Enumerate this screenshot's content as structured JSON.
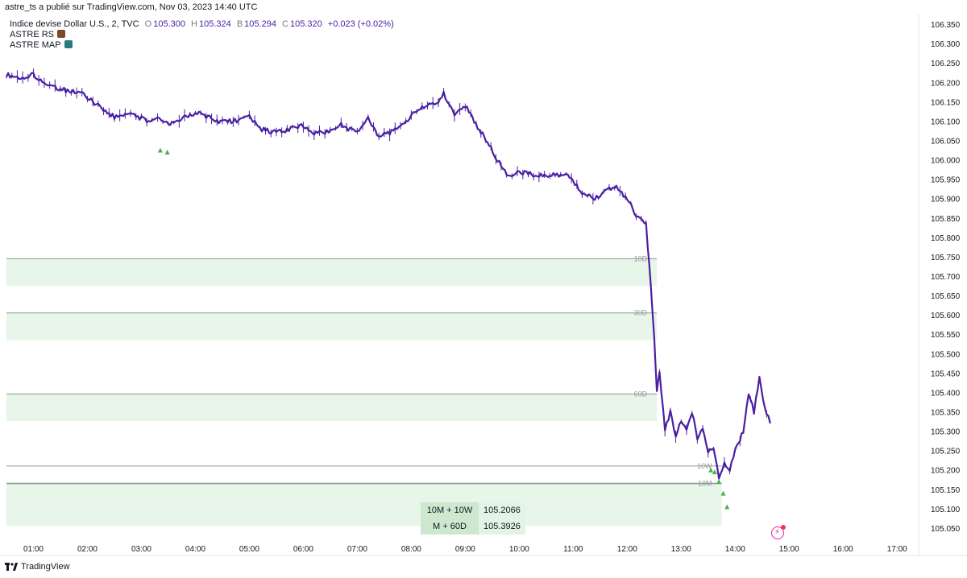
{
  "header": {
    "publisher_line": "astre_ts a publié sur TradingView.com, Nov 03, 2023 14:40 UTC"
  },
  "legend": {
    "symbol": "Indice devise Dollar U.S., 2, TVC",
    "open_label": "O",
    "open": "105.300",
    "high_label": "H",
    "high": "105.324",
    "low_label": "B",
    "low": "105.294",
    "close_label": "C",
    "close": "105.320",
    "change": "+0.023 (+0.02%)",
    "indicators": [
      {
        "name": "ASTRE RS",
        "badge_color": "#7b4a2a"
      },
      {
        "name": "ASTRE MAP",
        "badge_color": "#2a7b7b"
      }
    ]
  },
  "info_table": {
    "rows": [
      {
        "key": "10M + 10W",
        "value": "105.2066"
      },
      {
        "key": "M + 60D",
        "value": "105.3926"
      }
    ]
  },
  "footer": {
    "brand": "TradingView"
  },
  "colors": {
    "candle": "#4a1fa3",
    "zone_fill": "#e8f5e9",
    "zone_line": "#8a9a8c",
    "arrow": "#4caf50",
    "grid_text": "#131722"
  },
  "chart_data": {
    "type": "line",
    "ylim": [
      105.025,
      106.375
    ],
    "y_ticks": [
      "106.350",
      "106.300",
      "106.250",
      "106.200",
      "106.150",
      "106.100",
      "106.050",
      "106.000",
      "105.950",
      "105.900",
      "105.850",
      "105.800",
      "105.750",
      "105.700",
      "105.650",
      "105.600",
      "105.550",
      "105.500",
      "105.450",
      "105.400",
      "105.350",
      "105.300",
      "105.250",
      "105.200",
      "105.150",
      "105.100",
      "105.050"
    ],
    "x_ticks": [
      "01:00",
      "02:00",
      "03:00",
      "04:00",
      "05:00",
      "06:00",
      "07:00",
      "08:00",
      "09:00",
      "10:00",
      "11:00",
      "12:00",
      "13:00",
      "14:00",
      "15:00",
      "16:00",
      "17:00"
    ],
    "x_range_hours": [
      0.5,
      17.4
    ],
    "series": [
      {
        "x": [
          0.5,
          0.8,
          1.0,
          1.3,
          1.6,
          1.9,
          2.2,
          2.5,
          2.8,
          3.1,
          3.3,
          3.5,
          3.8,
          4.1,
          4.4,
          4.7,
          5.0,
          5.2,
          5.5,
          5.8,
          6.0,
          6.2,
          6.4,
          6.7,
          7.0,
          7.2,
          7.4,
          7.6,
          7.9,
          8.1,
          8.3,
          8.5,
          8.6,
          8.8,
          9.0,
          9.2,
          9.35,
          9.6,
          9.8,
          10.0,
          10.3,
          10.6,
          10.9,
          11.2,
          11.4,
          11.6,
          11.8,
          12.0,
          12.2,
          12.35,
          12.5,
          12.55,
          12.6,
          12.7,
          12.8,
          12.9,
          13.0,
          13.1,
          13.2,
          13.3,
          13.4,
          13.5,
          13.6,
          13.7,
          13.8,
          13.9,
          14.0,
          14.15,
          14.25,
          14.35,
          14.45,
          14.55,
          14.65
        ],
        "values": [
          106.22,
          106.21,
          106.22,
          106.19,
          106.18,
          106.17,
          106.14,
          106.11,
          106.12,
          106.1,
          106.11,
          106.09,
          106.11,
          106.12,
          106.1,
          106.1,
          106.11,
          106.08,
          106.07,
          106.08,
          106.09,
          106.07,
          106.07,
          106.09,
          106.07,
          106.11,
          106.06,
          106.07,
          106.1,
          106.13,
          106.14,
          106.15,
          106.17,
          106.12,
          106.14,
          106.09,
          106.06,
          106.0,
          105.96,
          105.97,
          105.96,
          105.96,
          105.96,
          105.91,
          105.9,
          105.92,
          105.93,
          105.9,
          105.85,
          105.84,
          105.55,
          105.4,
          105.45,
          105.3,
          105.35,
          105.28,
          105.33,
          105.3,
          105.35,
          105.28,
          105.31,
          105.25,
          105.26,
          105.18,
          105.22,
          105.2,
          105.25,
          105.3,
          105.4,
          105.35,
          105.44,
          105.36,
          105.32
        ]
      }
    ],
    "zones": [
      {
        "label": "10D",
        "top": 105.745,
        "bottom": 105.675
      },
      {
        "label": "30D",
        "top": 105.605,
        "bottom": 105.535
      },
      {
        "label": "60D",
        "top": 105.396,
        "bottom": 105.326
      },
      {
        "label": "10W",
        "top": 105.21,
        "bottom": 105.21
      },
      {
        "label": "10M",
        "top": 105.165,
        "bottom": 105.055
      }
    ],
    "zone_end_x": [
      12.55,
      12.55,
      12.55,
      13.75,
      13.75
    ],
    "signal_arrows": [
      {
        "x": 3.35,
        "y": 106.025
      },
      {
        "x": 3.48,
        "y": 106.02
      },
      {
        "x": 13.55,
        "y": 105.2
      },
      {
        "x": 13.62,
        "y": 105.195
      },
      {
        "x": 13.7,
        "y": 105.17
      },
      {
        "x": 13.78,
        "y": 105.14
      },
      {
        "x": 13.85,
        "y": 105.105
      }
    ]
  }
}
